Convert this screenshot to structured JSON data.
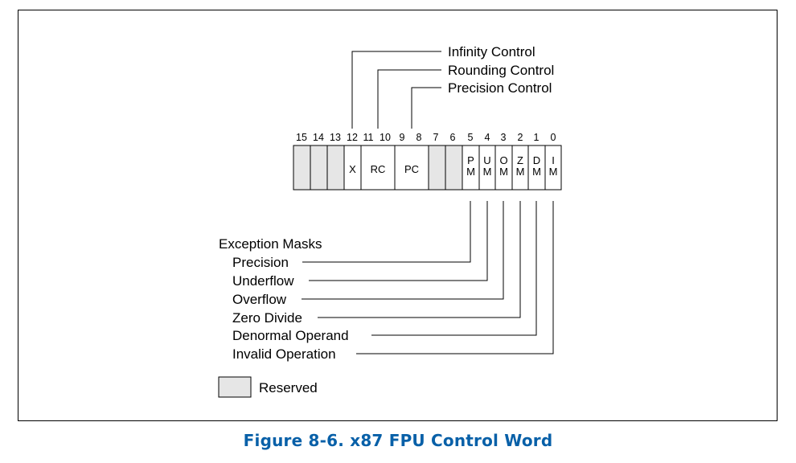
{
  "diagram": {
    "bit_numbers": [
      "15",
      "14",
      "13",
      "12",
      "11",
      "10",
      "9",
      "8",
      "7",
      "6",
      "5",
      "4",
      "3",
      "2",
      "1",
      "0"
    ],
    "fields": [
      {
        "name": "reserved-15",
        "label": "",
        "reserved": true
      },
      {
        "name": "reserved-14",
        "label": "",
        "reserved": true
      },
      {
        "name": "reserved-13",
        "label": "",
        "reserved": true
      },
      {
        "name": "x",
        "label": "X",
        "reserved": false
      },
      {
        "name": "rc",
        "label": "RC",
        "reserved": false
      },
      {
        "name": "pc",
        "label": "PC",
        "reserved": false
      },
      {
        "name": "reserved-7",
        "label": "",
        "reserved": true
      },
      {
        "name": "reserved-6",
        "label": "",
        "reserved": true
      },
      {
        "name": "pm",
        "label": [
          "P",
          "M"
        ],
        "reserved": false
      },
      {
        "name": "um",
        "label": [
          "U",
          "M"
        ],
        "reserved": false
      },
      {
        "name": "om",
        "label": [
          "O",
          "M"
        ],
        "reserved": false
      },
      {
        "name": "zm",
        "label": [
          "Z",
          "M"
        ],
        "reserved": false
      },
      {
        "name": "dm",
        "label": [
          "D",
          "M"
        ],
        "reserved": false
      },
      {
        "name": "im",
        "label": [
          "I",
          "M"
        ],
        "reserved": false
      }
    ],
    "controls": [
      "Infinity Control",
      "Rounding Control",
      "Precision Control"
    ],
    "exception_masks_title": "Exception Masks",
    "exception_masks": [
      "Precision",
      "Underflow",
      "Overflow",
      "Zero Divide",
      "Denormal Operand",
      "Invalid Operation"
    ],
    "legend": {
      "label": "Reserved",
      "color": "#e6e6e6"
    }
  },
  "caption": "Figure 8-6.  x87 FPU Control Word",
  "colors": {
    "reserved_fill": "#e6e6e6",
    "caption": "#0860a8"
  }
}
